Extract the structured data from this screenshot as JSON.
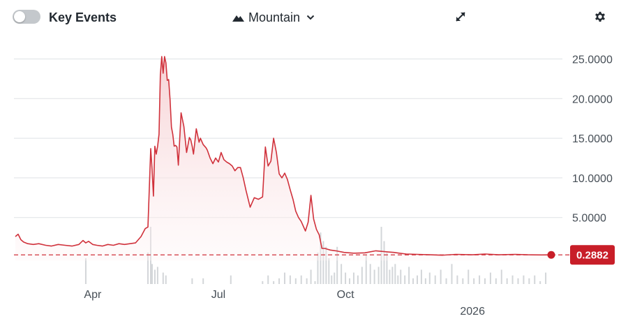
{
  "toolbar": {
    "key_events_label": "Key Events",
    "chart_type_label": "Mountain",
    "toggle_icon": "toggle-switch-off",
    "mountain_icon": "mountain-icon",
    "chevron_icon": "chevron-down-icon",
    "expand_icon": "expand-icon",
    "settings_icon": "gear-icon"
  },
  "colors": {
    "line": "#d0313b",
    "fill_top": "#f6cfd2",
    "grid": "#dfe2e5",
    "badge": "#c81e28",
    "volume": "#d3d6d9"
  },
  "chart_data": {
    "type": "area",
    "title": "",
    "xlabel": "",
    "ylabel": "",
    "x_ticks": [
      "Apr",
      "Jul",
      "Oct",
      "2026"
    ],
    "y_ticks": [
      "25.0000",
      "20.0000",
      "15.0000",
      "10.0000",
      "5.0000"
    ],
    "ylim": [
      0,
      27
    ],
    "y_axis_position": "right",
    "grid": true,
    "last_value": 0.2882,
    "last_value_label": "0.2882",
    "series": [
      {
        "x": [
          "2025-02-04",
          "2025-02-06",
          "2025-02-08",
          "2025-02-10",
          "2025-02-13",
          "2025-02-17",
          "2025-02-21",
          "2025-02-26",
          "2025-03-02",
          "2025-03-07",
          "2025-03-12",
          "2025-03-17",
          "2025-03-22",
          "2025-03-25",
          "2025-03-27",
          "2025-03-29",
          "2025-04-01",
          "2025-04-04",
          "2025-04-08",
          "2025-04-12",
          "2025-04-16",
          "2025-04-20",
          "2025-04-24",
          "2025-04-28",
          "2025-05-02",
          "2025-05-06",
          "2025-05-09",
          "2025-05-11",
          "2025-05-13",
          "2025-05-14",
          "2025-05-15",
          "2025-05-16",
          "2025-05-17",
          "2025-05-18",
          "2025-05-19",
          "2025-05-20",
          "2025-05-21",
          "2025-05-22",
          "2025-05-23",
          "2025-05-24",
          "2025-05-25",
          "2025-05-26",
          "2025-05-27",
          "2025-05-28",
          "2025-05-29",
          "2025-05-30",
          "2025-05-31",
          "2025-06-01",
          "2025-06-02",
          "2025-06-04",
          "2025-06-06",
          "2025-06-08",
          "2025-06-10",
          "2025-06-11",
          "2025-06-12",
          "2025-06-13",
          "2025-06-15",
          "2025-06-17",
          "2025-06-18",
          "2025-06-20",
          "2025-06-22",
          "2025-06-23",
          "2025-06-25",
          "2025-06-27",
          "2025-06-29",
          "2025-07-01",
          "2025-07-03",
          "2025-07-05",
          "2025-07-07",
          "2025-07-09",
          "2025-07-11",
          "2025-07-13",
          "2025-07-15",
          "2025-07-17",
          "2025-07-19",
          "2025-07-21",
          "2025-07-24",
          "2025-07-27",
          "2025-07-30",
          "2025-08-02",
          "2025-08-04",
          "2025-08-06",
          "2025-08-08",
          "2025-08-10",
          "2025-08-12",
          "2025-08-14",
          "2025-08-16",
          "2025-08-18",
          "2025-08-20",
          "2025-08-22",
          "2025-08-24",
          "2025-08-26",
          "2025-08-28",
          "2025-08-30",
          "2025-09-02",
          "2025-09-04",
          "2025-09-06",
          "2025-09-08",
          "2025-09-10",
          "2025-09-12",
          "2025-09-14",
          "2025-09-16",
          "2025-09-18",
          "2025-09-20",
          "2025-09-24",
          "2025-09-30",
          "2025-10-07",
          "2025-10-15",
          "2025-10-23",
          "2025-11-01",
          "2025-11-05",
          "2025-11-09",
          "2025-11-14",
          "2025-11-22",
          "2025-12-01",
          "2025-12-10",
          "2025-12-20",
          "2026-01-01",
          "2026-01-10",
          "2026-01-20",
          "2026-02-01",
          "2026-02-10",
          "2026-02-20",
          "2026-02-27"
        ],
        "y": [
          2.6,
          2.9,
          2.2,
          1.9,
          1.7,
          1.6,
          1.7,
          1.5,
          1.4,
          1.6,
          1.5,
          1.4,
          1.6,
          2.1,
          1.8,
          2.0,
          1.6,
          1.5,
          1.4,
          1.6,
          1.5,
          1.7,
          1.6,
          1.7,
          1.8,
          2.6,
          3.6,
          3.8,
          13.7,
          11.0,
          7.7,
          14.0,
          13.0,
          14.0,
          15.5,
          23.0,
          25.3,
          23.2,
          25.3,
          24.5,
          22.3,
          22.4,
          19.9,
          16.4,
          15.5,
          14.0,
          14.1,
          13.9,
          11.6,
          18.2,
          16.5,
          13.2,
          15.1,
          14.8,
          14.0,
          13.0,
          16.2,
          14.5,
          15.0,
          14.2,
          13.8,
          13.5,
          12.5,
          11.8,
          12.5,
          12.0,
          13.2,
          12.3,
          12.0,
          11.8,
          11.5,
          10.9,
          11.3,
          11.3,
          10.0,
          8.4,
          6.3,
          7.5,
          7.3,
          7.6,
          13.9,
          11.5,
          12.1,
          15.0,
          13.2,
          10.5,
          10.0,
          10.6,
          9.8,
          8.5,
          7.3,
          5.8,
          5.0,
          4.5,
          3.3,
          4.4,
          7.8,
          4.8,
          3.5,
          2.8,
          1.1,
          1.1,
          1.0,
          0.9,
          0.8,
          0.6,
          0.5,
          0.55,
          0.8,
          0.65,
          0.6,
          0.5,
          0.4,
          0.35,
          0.3,
          0.25,
          0.35,
          0.3,
          0.4,
          0.3,
          0.35,
          0.3,
          0.28,
          0.2882
        ]
      }
    ],
    "volume": {
      "x": [
        "2025-03-27",
        "2025-05-11",
        "2025-05-13",
        "2025-05-14",
        "2025-05-16",
        "2025-05-18",
        "2025-05-22",
        "2025-05-24",
        "2025-06-12",
        "2025-06-20",
        "2025-07-10",
        "2025-08-02",
        "2025-08-06",
        "2025-08-10",
        "2025-08-14",
        "2025-08-18",
        "2025-08-22",
        "2025-08-26",
        "2025-08-30",
        "2025-09-03",
        "2025-09-06",
        "2025-09-09",
        "2025-09-11",
        "2025-09-13",
        "2025-09-15",
        "2025-09-17",
        "2025-09-19",
        "2025-09-21",
        "2025-09-23",
        "2025-09-25",
        "2025-09-28",
        "2025-10-01",
        "2025-10-04",
        "2025-10-07",
        "2025-10-10",
        "2025-10-13",
        "2025-10-16",
        "2025-10-19",
        "2025-10-22",
        "2025-10-25",
        "2025-10-27",
        "2025-10-29",
        "2025-10-31",
        "2025-11-02",
        "2025-11-04",
        "2025-11-06",
        "2025-11-08",
        "2025-11-10",
        "2025-11-13",
        "2025-11-16",
        "2025-11-19",
        "2025-11-22",
        "2025-11-25",
        "2025-11-28",
        "2025-12-01",
        "2025-12-05",
        "2025-12-09",
        "2025-12-13",
        "2025-12-17",
        "2025-12-21",
        "2025-12-25",
        "2025-12-29",
        "2026-01-02",
        "2026-01-06",
        "2026-01-10",
        "2026-01-14",
        "2026-01-18",
        "2026-01-22",
        "2026-01-26",
        "2026-01-30",
        "2026-02-03",
        "2026-02-07",
        "2026-02-11",
        "2026-02-15",
        "2026-02-19",
        "2026-02-23"
      ],
      "v": [
        0.45,
        0.55,
        1.0,
        0.35,
        0.25,
        0.3,
        0.2,
        0.15,
        0.1,
        0.1,
        0.15,
        0.05,
        0.15,
        0.05,
        0.1,
        0.2,
        0.15,
        0.1,
        0.15,
        0.1,
        0.25,
        0.05,
        0.55,
        0.9,
        0.75,
        0.65,
        0.45,
        0.15,
        0.2,
        0.65,
        0.35,
        0.2,
        0.1,
        0.2,
        0.15,
        0.3,
        0.5,
        0.35,
        0.25,
        0.3,
        1.0,
        0.75,
        0.55,
        0.25,
        0.3,
        0.35,
        0.15,
        0.25,
        0.15,
        0.3,
        0.1,
        0.15,
        0.25,
        0.1,
        0.2,
        0.15,
        0.25,
        0.1,
        0.35,
        0.15,
        0.1,
        0.25,
        0.1,
        0.15,
        0.1,
        0.2,
        0.1,
        0.25,
        0.1,
        0.15,
        0.1,
        0.15,
        0.1,
        0.15,
        0.05,
        0.2
      ]
    }
  }
}
